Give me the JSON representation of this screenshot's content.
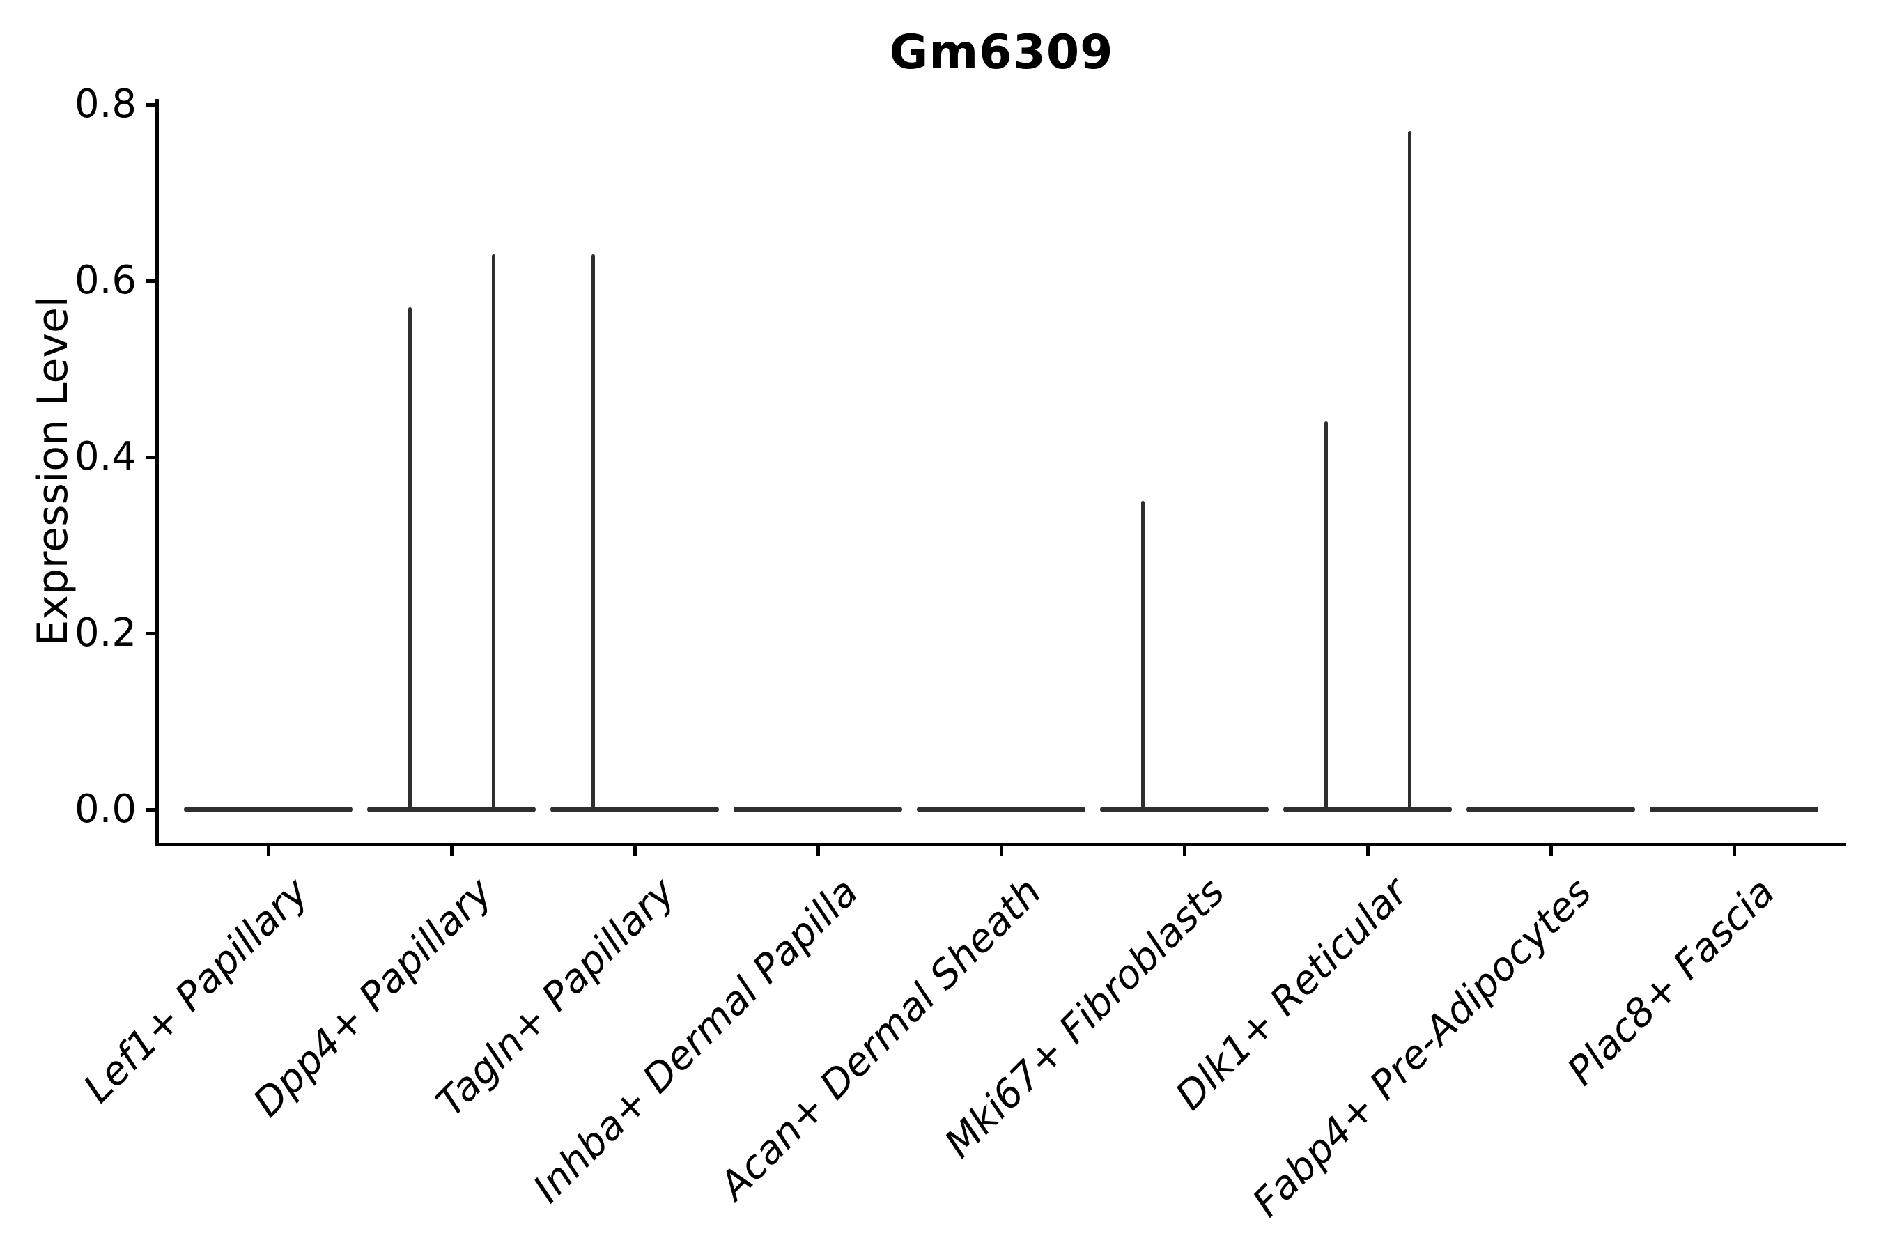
{
  "chart_data": {
    "type": "violin",
    "title": "Gm6309",
    "ylabel": "Expression Level",
    "xlabel": "",
    "ylim": [
      0.0,
      0.8
    ],
    "yticks": [
      0.0,
      0.2,
      0.4,
      0.6,
      0.8
    ],
    "ytick_labels": [
      "0.0",
      "0.2",
      "0.4",
      "0.6",
      "0.8"
    ],
    "grid": false,
    "legend": "none",
    "categories": [
      "Lef1+ Papillary",
      "Dpp4+ Papillary",
      "Tagln+ Papillary",
      "Inhba+ Dermal Papilla",
      "Acan+ Dermal Sheath",
      "Mki67+ Fibroblasts",
      "Dlk1+ Reticular",
      "Fabp4+ Pre-Adipocytes",
      "Plac8+ Fascia"
    ],
    "description": "Violin plot of Gm6309 expression; every cluster has a dense flat violin at expression 0, with thin needle-like density spikes up to the max expressed value in a few clusters",
    "violins": [
      {
        "category": "Lef1+ Papillary",
        "base_value": 0.0,
        "spikes": []
      },
      {
        "category": "Dpp4+ Papillary",
        "base_value": 0.0,
        "spikes": [
          {
            "position": "left",
            "value": 0.57
          },
          {
            "position": "right",
            "value": 0.63
          }
        ]
      },
      {
        "category": "Tagln+ Papillary",
        "base_value": 0.0,
        "spikes": [
          {
            "position": "left",
            "value": 0.63
          }
        ]
      },
      {
        "category": "Inhba+ Dermal Papilla",
        "base_value": 0.0,
        "spikes": []
      },
      {
        "category": "Acan+ Dermal Sheath",
        "base_value": 0.0,
        "spikes": []
      },
      {
        "category": "Mki67+ Fibroblasts",
        "base_value": 0.0,
        "spikes": [
          {
            "position": "left",
            "value": 0.35
          }
        ]
      },
      {
        "category": "Dlk1+ Reticular",
        "base_value": 0.0,
        "spikes": [
          {
            "position": "left",
            "value": 0.44
          },
          {
            "position": "right",
            "value": 0.77
          }
        ]
      },
      {
        "category": "Fabp4+ Pre-Adipocytes",
        "base_value": 0.0,
        "spikes": []
      },
      {
        "category": "Plac8+ Fascia",
        "base_value": 0.0,
        "spikes": []
      }
    ],
    "colors": {
      "violin": "#2e2e2e",
      "axis": "#000000",
      "text": "#000000",
      "background": "#ffffff"
    }
  }
}
